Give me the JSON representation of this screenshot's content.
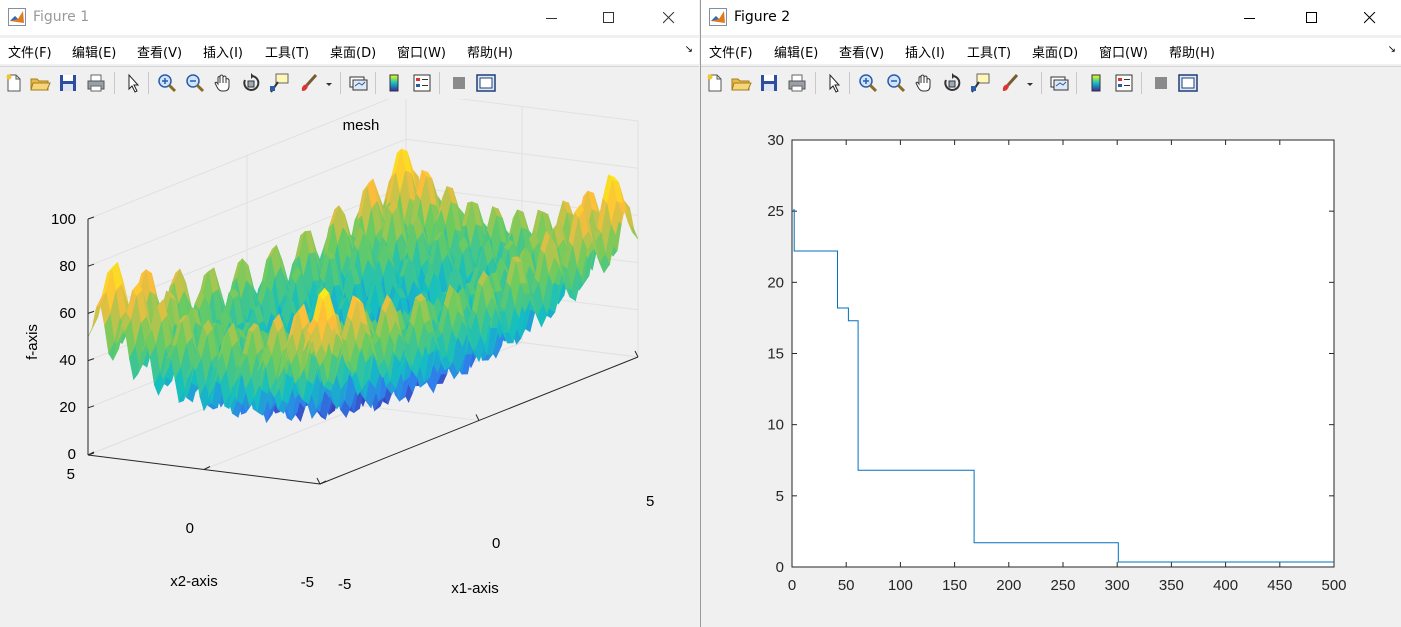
{
  "figure1": {
    "title": "Figure 1",
    "menu": [
      "文件(F)",
      "编辑(E)",
      "查看(V)",
      "插入(I)",
      "工具(T)",
      "桌面(D)",
      "窗口(W)",
      "帮助(H)"
    ],
    "plot": {
      "title": "mesh",
      "xlabel": "x1-axis",
      "ylabel": "x2-axis",
      "zlabel": "f-axis",
      "zticks": [
        "0",
        "20",
        "40",
        "60",
        "80",
        "100"
      ],
      "x1ticks": [
        "-5",
        "0",
        "5"
      ],
      "x2ticks": [
        "-5",
        "0",
        "5"
      ]
    }
  },
  "figure2": {
    "title": "Figure 2",
    "menu": [
      "文件(F)",
      "编辑(E)",
      "查看(V)",
      "插入(I)",
      "工具(T)",
      "桌面(D)",
      "窗口(W)",
      "帮助(H)"
    ]
  },
  "chart_data": [
    {
      "type": "surface",
      "title": "mesh",
      "xlabel": "x1-axis",
      "ylabel": "x2-axis",
      "zlabel": "f-axis",
      "xlim": [
        -5,
        5
      ],
      "ylim": [
        -5,
        5
      ],
      "zlim": [
        0,
        100
      ],
      "grid": true,
      "colormap": [
        "#3e26a8",
        "#2f7feb",
        "#13bfc2",
        "#6ccb5f",
        "#fdbd3c",
        "#f9fb0e"
      ]
    },
    {
      "type": "line",
      "title": "",
      "xlabel": "",
      "ylabel": "",
      "xlim": [
        0,
        500
      ],
      "ylim": [
        0,
        30
      ],
      "xticks": [
        0,
        50,
        100,
        150,
        200,
        250,
        300,
        350,
        400,
        450,
        500
      ],
      "yticks": [
        0,
        5,
        10,
        15,
        20,
        25,
        30
      ],
      "grid": false,
      "series": [
        {
          "color": "#0072bd",
          "x": [
            1,
            2,
            2,
            42,
            42,
            52,
            52,
            61,
            61,
            168,
            168,
            301,
            301,
            500
          ],
          "y": [
            25.1,
            25.1,
            22.2,
            22.2,
            18.2,
            18.2,
            17.3,
            17.3,
            6.8,
            6.8,
            1.7,
            1.7,
            0.35,
            0.35
          ]
        }
      ]
    }
  ]
}
